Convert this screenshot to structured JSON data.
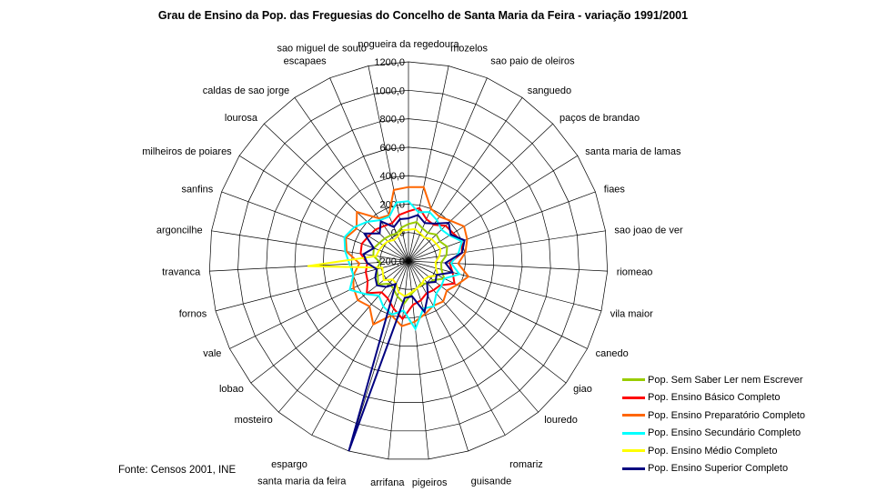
{
  "title": "Grau de Ensino da Pop. das Freguesias do Concelho de Santa Maria da Feira - variação 1991/2001",
  "footer": "Fonte: Censos 2001, INE",
  "chart_data": {
    "type": "radar",
    "title": "Grau de Ensino da Pop. das Freguesias do Concelho de Santa Maria da Feira - variação 1991/2001",
    "legend_position": "bottom-right",
    "grid": true,
    "axis": {
      "min": -200,
      "max": 1200,
      "step": 200,
      "tick_labels": [
        "1200,0",
        "1000,0",
        "800,0",
        "600,0",
        "400,0",
        "200,0",
        "0,0",
        "-200,0"
      ]
    },
    "categories": [
      "nogueira da regedoura",
      "mozelos",
      "sao paio de oleiros",
      "sanguedo",
      "paços de brandao",
      "santa maria de lamas",
      "fiaes",
      "sao joao de ver",
      "riomeao",
      "vila maior",
      "canedo",
      "giao",
      "louredo",
      "romariz",
      "guisande",
      "pigeiros",
      "arrifana",
      "santa maria da feira",
      "espargo",
      "mosteiro",
      "lobao",
      "vale",
      "fornos",
      "travanca",
      "argoncilhe",
      "sanfins",
      "milheiros de poiares",
      "lourosa",
      "caldas de sao jorge",
      "escapaes",
      "sao miguel de souto"
    ],
    "series": [
      {
        "name": "Pop. Sem Saber Ler nem Escrever",
        "color": "#99CC00",
        "values": [
          60,
          80,
          50,
          40,
          70,
          60,
          90,
          70,
          30,
          40,
          80,
          20,
          10,
          -20,
          0,
          30,
          100,
          60,
          20,
          10,
          70,
          40,
          30,
          0,
          50,
          60,
          40,
          30,
          20,
          10,
          40
        ]
      },
      {
        "name": "Pop. Ensino Básico Completo",
        "color": "#FF0000",
        "values": [
          150,
          180,
          120,
          110,
          160,
          170,
          200,
          180,
          90,
          120,
          160,
          80,
          70,
          60,
          90,
          110,
          210,
          150,
          100,
          90,
          170,
          120,
          110,
          90,
          140,
          150,
          130,
          120,
          100,
          90,
          130
        ]
      },
      {
        "name": "Pop. Ensino Preparatório Completo",
        "color": "#FF6600",
        "values": [
          320,
          330,
          200,
          180,
          210,
          260,
          240,
          205,
          150,
          235,
          180,
          140,
          175,
          160,
          190,
          230,
          260,
          200,
          310,
          220,
          250,
          230,
          200,
          145,
          240,
          270,
          230,
          300,
          165,
          150,
          310
        ]
      },
      {
        "name": "Pop. Ensino Secundário Completo",
        "color": "#00FFFF",
        "values": [
          220,
          150,
          175,
          150,
          120,
          140,
          200,
          155,
          100,
          170,
          80,
          90,
          100,
          165,
          150,
          280,
          150,
          195,
          165,
          120,
          180,
          260,
          200,
          215,
          250,
          280,
          250,
          200,
          150,
          140,
          220
        ]
      },
      {
        "name": "Pop. Ensino Médio Completo",
        "color": "#FFFF00",
        "values": [
          20,
          30,
          10,
          0,
          25,
          30,
          40,
          20,
          -10,
          0,
          30,
          -20,
          -30,
          -10,
          0,
          20,
          50,
          30,
          -20,
          -30,
          20,
          0,
          -10,
          510,
          30,
          20,
          10,
          0,
          -20,
          -10,
          20
        ]
      },
      {
        "name": "Pop. Ensino Superior Completo",
        "color": "#000080",
        "values": [
          100,
          130,
          90,
          120,
          190,
          150,
          220,
          180,
          60,
          120,
          20,
          40,
          0,
          80,
          175,
          50,
          60,
          1200,
          -15,
          40,
          80,
          60,
          30,
          90,
          120,
          60,
          165,
          80,
          140,
          60,
          100
        ]
      }
    ]
  }
}
